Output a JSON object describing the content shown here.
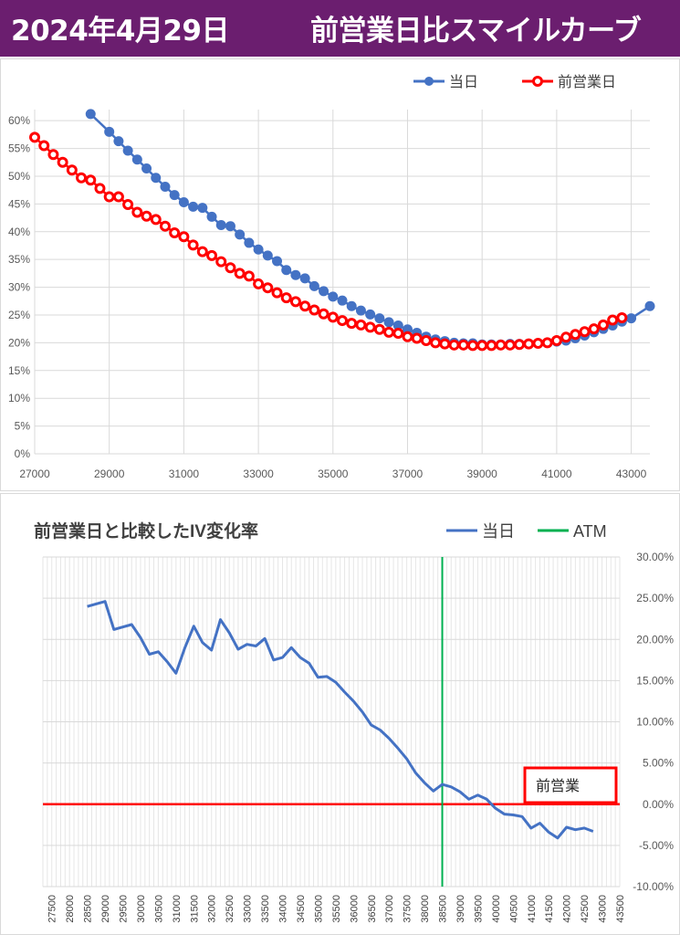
{
  "header": {
    "date": "2024年4月29日",
    "title": "前営業日比スマイルカーブ"
  },
  "colors": {
    "header_bg": "#6b1e6f",
    "today": "#4472c4",
    "prev": "#ff0000",
    "atm": "#00b050",
    "zero_line": "#ff0000",
    "grid": "#d9d9d9"
  },
  "chart_data": [
    {
      "type": "line",
      "title": "",
      "xlabel": "",
      "ylabel": "",
      "legend_position": "top-right",
      "grid": true,
      "xlim": [
        27000,
        43500
      ],
      "ylim": [
        0,
        0.62
      ],
      "x_ticks": [
        "27000",
        "29000",
        "31000",
        "33000",
        "35000",
        "37000",
        "39000",
        "41000",
        "43000"
      ],
      "y_ticks": [
        "0%",
        "5%",
        "10%",
        "15%",
        "20%",
        "25%",
        "30%",
        "35%",
        "40%",
        "45%",
        "50%",
        "55%",
        "60%"
      ],
      "series": [
        {
          "name": "当日",
          "color": "#4472c4",
          "x": [
            28500,
            29000,
            29250,
            29500,
            29750,
            30000,
            30250,
            30500,
            30750,
            31000,
            31250,
            31500,
            31750,
            32000,
            32250,
            32500,
            32750,
            33000,
            33250,
            33500,
            33750,
            34000,
            34250,
            34500,
            34750,
            35000,
            35250,
            35500,
            35750,
            36000,
            36250,
            36500,
            36750,
            37000,
            37250,
            37500,
            37750,
            38000,
            38250,
            38500,
            38750,
            39000,
            39250,
            39500,
            39750,
            40000,
            40250,
            40500,
            40750,
            41000,
            41250,
            41500,
            41750,
            42000,
            42250,
            42500,
            42750,
            43000,
            43500
          ],
          "values": [
            0.612,
            0.58,
            0.563,
            0.546,
            0.53,
            0.514,
            0.497,
            0.481,
            0.466,
            0.453,
            0.445,
            0.443,
            0.427,
            0.412,
            0.41,
            0.395,
            0.38,
            0.368,
            0.357,
            0.347,
            0.331,
            0.322,
            0.316,
            0.302,
            0.293,
            0.283,
            0.276,
            0.266,
            0.258,
            0.251,
            0.244,
            0.237,
            0.231,
            0.224,
            0.218,
            0.211,
            0.206,
            0.203,
            0.2,
            0.199,
            0.199,
            0.197,
            0.197,
            0.197,
            0.198,
            0.198,
            0.198,
            0.199,
            0.2,
            0.202,
            0.204,
            0.208,
            0.213,
            0.219,
            0.225,
            0.231,
            0.238,
            0.244,
            0.266
          ]
        },
        {
          "name": "前営業日",
          "color": "#ff0000",
          "x": [
            27000,
            27250,
            27500,
            27750,
            28000,
            28250,
            28500,
            28750,
            29000,
            29250,
            29500,
            29750,
            30000,
            30250,
            30500,
            30750,
            31000,
            31250,
            31500,
            31750,
            32000,
            32250,
            32500,
            32750,
            33000,
            33250,
            33500,
            33750,
            34000,
            34250,
            34500,
            34750,
            35000,
            35250,
            35500,
            35750,
            36000,
            36250,
            36500,
            36750,
            37000,
            37250,
            37500,
            37750,
            38000,
            38250,
            38500,
            38750,
            39000,
            39250,
            39500,
            39750,
            40000,
            40250,
            40500,
            40750,
            41000,
            41250,
            41500,
            41750,
            42000,
            42250,
            42500,
            42750
          ],
          "values": [
            0.57,
            0.555,
            0.539,
            0.525,
            0.511,
            0.497,
            0.493,
            0.478,
            0.463,
            0.463,
            0.449,
            0.435,
            0.428,
            0.422,
            0.41,
            0.398,
            0.391,
            0.376,
            0.364,
            0.357,
            0.346,
            0.335,
            0.325,
            0.32,
            0.306,
            0.299,
            0.29,
            0.281,
            0.274,
            0.266,
            0.259,
            0.252,
            0.246,
            0.24,
            0.235,
            0.232,
            0.228,
            0.224,
            0.219,
            0.217,
            0.211,
            0.208,
            0.204,
            0.2,
            0.198,
            0.196,
            0.196,
            0.195,
            0.195,
            0.195,
            0.196,
            0.196,
            0.197,
            0.198,
            0.199,
            0.2,
            0.204,
            0.21,
            0.215,
            0.22,
            0.225,
            0.232,
            0.241,
            0.245
          ]
        }
      ]
    },
    {
      "type": "line",
      "title": "前営業日と比較したIV変化率",
      "xlabel": "",
      "ylabel": "",
      "legend_position": "top-right",
      "grid": true,
      "categories": [
        "27500",
        "28000",
        "28500",
        "29000",
        "29500",
        "30000",
        "30500",
        "31000",
        "31500",
        "32000",
        "32500",
        "33000",
        "33500",
        "34000",
        "34500",
        "35000",
        "35500",
        "36000",
        "36500",
        "37000",
        "37500",
        "38000",
        "38500",
        "39000",
        "39500",
        "40000",
        "40500",
        "41000",
        "41500",
        "42000",
        "42500",
        "43000",
        "43500"
      ],
      "x_range": [
        27250,
        43500
      ],
      "ylim": [
        -0.1,
        0.3
      ],
      "y_ticks": [
        "30.00%",
        "25.00%",
        "20.00%",
        "15.00%",
        "10.00%",
        "5.00%",
        "0.00%",
        "-5.00%",
        "-10.00%"
      ],
      "atm_label": "ATM",
      "atm_strike": 38500,
      "box_label": "前営業",
      "series": [
        {
          "name": "当日",
          "color": "#4472c4",
          "x": [
            28500,
            28750,
            29000,
            29250,
            29500,
            29750,
            30000,
            30250,
            30500,
            30750,
            31000,
            31250,
            31500,
            31750,
            32000,
            32250,
            32500,
            32750,
            33000,
            33250,
            33500,
            33750,
            34000,
            34250,
            34500,
            34750,
            35000,
            35250,
            35500,
            35750,
            36000,
            36250,
            36500,
            36750,
            37000,
            37250,
            37500,
            37750,
            38000,
            38250,
            38500,
            38750,
            39000,
            39250,
            39500,
            39750,
            40000,
            40250,
            40500,
            40750,
            41000,
            41250,
            41500,
            41750,
            42000,
            42250,
            42500,
            42750
          ],
          "values": [
            0.24,
            0.243,
            0.246,
            0.212,
            0.215,
            0.218,
            0.202,
            0.182,
            0.185,
            0.173,
            0.159,
            0.19,
            0.216,
            0.196,
            0.187,
            0.224,
            0.208,
            0.188,
            0.194,
            0.192,
            0.201,
            0.175,
            0.178,
            0.19,
            0.178,
            0.171,
            0.154,
            0.155,
            0.148,
            0.136,
            0.125,
            0.112,
            0.096,
            0.09,
            0.08,
            0.068,
            0.055,
            0.038,
            0.026,
            0.016,
            0.024,
            0.021,
            0.015,
            0.006,
            0.011,
            0.006,
            -0.005,
            -0.012,
            -0.013,
            -0.015,
            -0.029,
            -0.023,
            -0.034,
            -0.041,
            -0.028,
            -0.031,
            -0.029,
            -0.033
          ]
        },
        {
          "name": "前営業日",
          "color": "#ff0000",
          "x": [
            27250,
            43500
          ],
          "values": [
            0,
            0
          ]
        }
      ]
    }
  ]
}
